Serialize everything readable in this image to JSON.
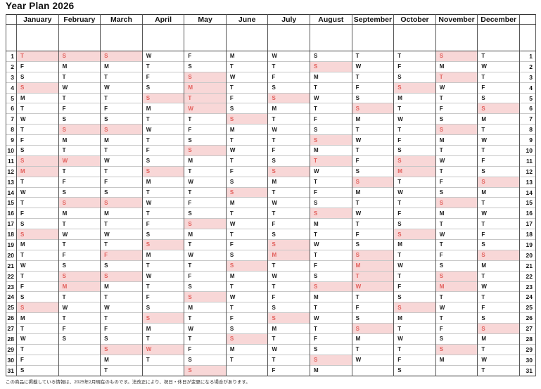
{
  "page": {
    "title": "Year Plan 2026",
    "footer_note": "この商品に掲載している情報は、2025年2月現在のものです。法改正により、祝日・休日が変更になる場合があります。"
  },
  "colors": {
    "holiday_bg": "#f8d7d7",
    "holiday_text": "#e2605c",
    "weekday_text": "#1b1b1b"
  },
  "calendar": {
    "year": "2026",
    "day_rows": 31,
    "months": [
      {
        "name": "January",
        "letters": "TFSSMTWTFSSMTWTFSSMTWTFSSMTWTFS",
        "highlighted_days": [
          1,
          4,
          11,
          12,
          18,
          25
        ]
      },
      {
        "name": "February",
        "letters": "SMTWTFSSMTWTFSSMTWTFSSMTWTFS",
        "highlighted_days": [
          1,
          8,
          11,
          15,
          22,
          23
        ]
      },
      {
        "name": "March",
        "letters": "SMTWTFSSMTWTFSSMTWTFSSMTWTFSSMT",
        "highlighted_days": [
          1,
          8,
          15,
          20,
          22,
          29
        ]
      },
      {
        "name": "April",
        "letters": "WTFSSMTWTFSSMTWTFSSMTWTFSSMTWT",
        "highlighted_days": [
          5,
          12,
          19,
          26,
          29
        ]
      },
      {
        "name": "May",
        "letters": "FSSMTWTFSSMTWTFSSMTWTFSSMTWTFSS",
        "highlighted_days": [
          3,
          4,
          5,
          6,
          10,
          17,
          24,
          31
        ]
      },
      {
        "name": "June",
        "letters": "MTWTFSSMTWTFSSMTWTFSSMTWTFSSMT",
        "highlighted_days": [
          7,
          14,
          21,
          28
        ]
      },
      {
        "name": "July",
        "letters": "WTFSSMTWTFSSMTWTFSSMTWTFSSMTWTF",
        "highlighted_days": [
          5,
          12,
          19,
          20,
          26
        ]
      },
      {
        "name": "August",
        "letters": "SSMTWTFSSMTWTFSSMTWTFSSMTWTFSSM",
        "highlighted_days": [
          2,
          9,
          11,
          16,
          23,
          30
        ]
      },
      {
        "name": "September",
        "letters": "TWTFSSMTWTFSSMTWTFSSMTWTFSSMTW",
        "highlighted_days": [
          6,
          13,
          20,
          21,
          22,
          23,
          27
        ]
      },
      {
        "name": "October",
        "letters": "TFSSMTWTFSSMTWTFSSMTWTFSSMTWTFS",
        "highlighted_days": [
          4,
          11,
          12,
          18,
          25
        ]
      },
      {
        "name": "November",
        "letters": "SMTWTFSSMTWTFSSMTWTFSSMTWTFSSM",
        "highlighted_days": [
          1,
          3,
          8,
          15,
          22,
          23,
          29
        ]
      },
      {
        "name": "December",
        "letters": "TWTFSSMTWTFSSMTWTFSSMTWTFSSMTWT",
        "highlighted_days": [
          6,
          13,
          20,
          27
        ]
      }
    ]
  }
}
